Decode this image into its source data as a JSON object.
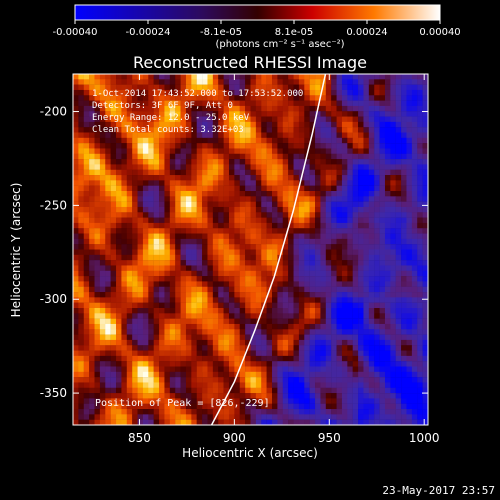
{
  "chart_data": {
    "type": "heatmap",
    "title": "Reconstructed RHESSI Image",
    "xlabel": "Heliocentric X (arcsec)",
    "ylabel": "Heliocentric Y (arcsec)",
    "xlim": [
      815,
      1002
    ],
    "ylim": [
      -367,
      -180
    ],
    "xticks": [
      850,
      900,
      950,
      1000
    ],
    "yticks": [
      -200,
      -250,
      -300,
      -350
    ],
    "colorbar": {
      "range": [
        -0.0004,
        0.0004
      ],
      "tick_labels": [
        "-0.00040",
        "-0.00024",
        "-8.1e-05",
        "8.1e-05",
        "0.00024",
        "0.00040"
      ],
      "unit_label": "(photons cm⁻² s⁻¹ asec⁻²)"
    },
    "info_lines": [
      "1-Oct-2014 17:43:52.000 to 17:53:52.000",
      "Detectors: 3F 6F 9F, Att 0",
      "Energy Range: 12.0 - 25.0 keV",
      "Clean    Total counts: 3.32E+03"
    ],
    "peak_text": "Position of Peak = [826,-229]",
    "limb_points": [
      [
        888,
        -367
      ],
      [
        900,
        -344
      ],
      [
        911,
        -316
      ],
      [
        921,
        -288
      ],
      [
        931,
        -253
      ],
      [
        941,
        -212
      ],
      [
        948,
        -180
      ]
    ],
    "footer": "23-May-2017 23:57"
  }
}
